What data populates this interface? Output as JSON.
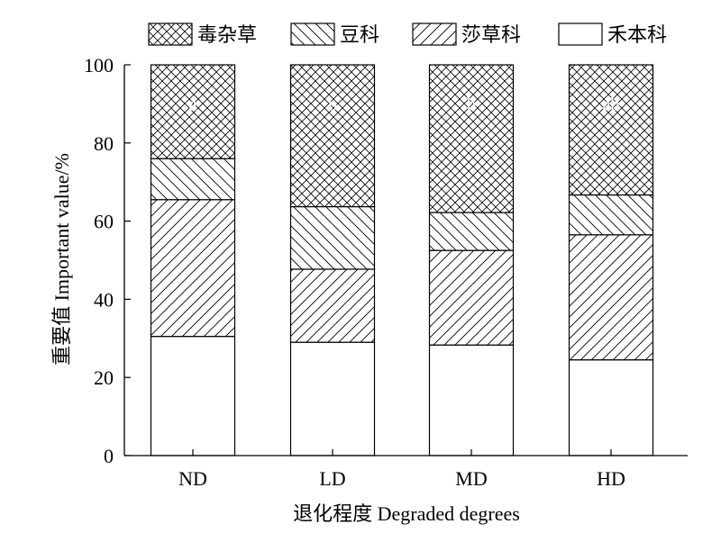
{
  "chart_data": {
    "type": "bar",
    "stacked": true,
    "categories": [
      "ND",
      "LD",
      "MD",
      "HD"
    ],
    "series": [
      {
        "name": "禾本科",
        "values": [
          30.5,
          29.0,
          28.3,
          24.5
        ],
        "pattern": "none"
      },
      {
        "name": "莎草科",
        "values": [
          35.0,
          18.7,
          24.2,
          32.0
        ],
        "pattern": "forward-hatch"
      },
      {
        "name": "豆科",
        "values": [
          10.5,
          16.0,
          9.7,
          10.2
        ],
        "pattern": "back-hatch"
      },
      {
        "name": "毒杂草",
        "values": [
          24.0,
          36.3,
          37.8,
          33.3
        ],
        "pattern": "cross-hatch"
      }
    ],
    "significance_labels": [
      "a",
      "b",
      "b",
      "ab"
    ],
    "legend_order": [
      "毒杂草",
      "豆科",
      "莎草科",
      "禾本科"
    ],
    "xlabel": "退化程度 Degraded degrees",
    "ylabel": "重要值 Important value/%",
    "ylim": [
      0,
      100
    ],
    "yticks": [
      0,
      20,
      40,
      60,
      80,
      100
    ],
    "legend_position": "top",
    "grid": false,
    "colors": {
      "stroke": "#000000",
      "fill": "#ffffff"
    }
  }
}
